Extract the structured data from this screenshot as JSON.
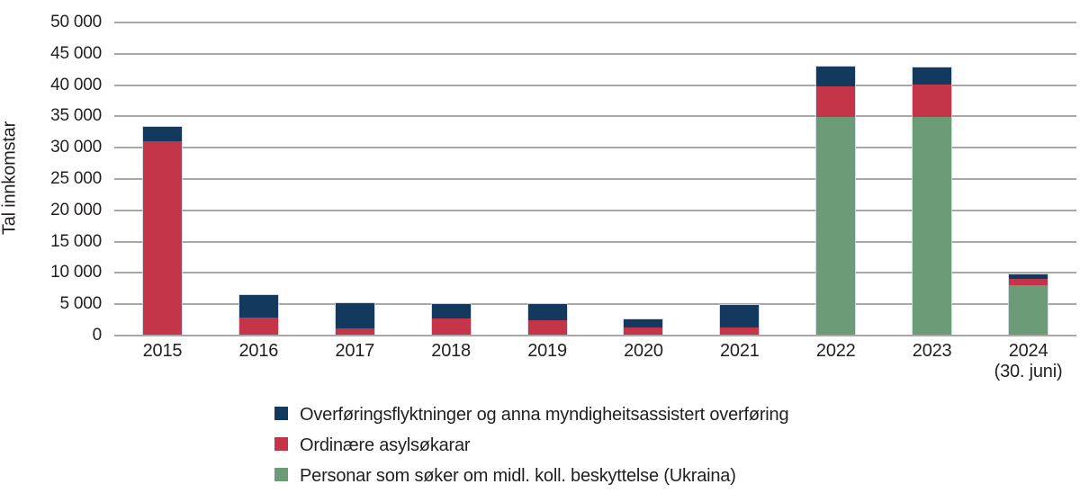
{
  "colors": {
    "grid": "#A8A8A8",
    "text": "#231F20",
    "background": "#FFFFFF",
    "navy": "#133A5E",
    "red": "#C43549",
    "green": "#6C9B77"
  },
  "chart_data": {
    "type": "bar",
    "stacked": true,
    "title": "",
    "xlabel": "",
    "ylabel": "Tal innkomstar",
    "ylim": [
      0,
      50000
    ],
    "ytick_step": 5000,
    "grid": "horizontal",
    "legend_position": "bottom-left",
    "y_tick_labels_top_to_bottom": [
      "50 000",
      "45 000",
      "40 000",
      "35 000",
      "30 000",
      "25 000",
      "20 000",
      "15 000",
      "10 000",
      "5 000",
      "0"
    ],
    "categories": [
      {
        "label": "2015",
        "sublabel": ""
      },
      {
        "label": "2016",
        "sublabel": ""
      },
      {
        "label": "2017",
        "sublabel": ""
      },
      {
        "label": "2018",
        "sublabel": ""
      },
      {
        "label": "2019",
        "sublabel": ""
      },
      {
        "label": "2020",
        "sublabel": ""
      },
      {
        "label": "2021",
        "sublabel": ""
      },
      {
        "label": "2022",
        "sublabel": ""
      },
      {
        "label": "2023",
        "sublabel": ""
      },
      {
        "label": "2024",
        "sublabel": "(30. juni)"
      }
    ],
    "series_stack_order": "bottom_to_top",
    "series": [
      {
        "key": "ukraina",
        "name": "Personar som søker om midl. koll. beskyttelse (Ukraina)",
        "color": "#6C9B77",
        "values": [
          0,
          0,
          0,
          0,
          0,
          0,
          0,
          34900,
          34900,
          8000
        ]
      },
      {
        "key": "asyl",
        "name": "Ordinære asylsøkarar",
        "color": "#C43549",
        "values": [
          31050,
          2900,
          1100,
          2750,
          2500,
          1300,
          1300,
          4900,
          5200,
          1000
        ]
      },
      {
        "key": "overforing",
        "name": "Overføringsflyktninger og anna myndigheitsassistert overføring",
        "color": "#133A5E",
        "values": [
          2450,
          3700,
          4200,
          2400,
          2650,
          1400,
          3750,
          3300,
          2900,
          950
        ]
      }
    ],
    "legend_top_to_bottom": [
      "overforing",
      "asyl",
      "ukraina"
    ]
  }
}
